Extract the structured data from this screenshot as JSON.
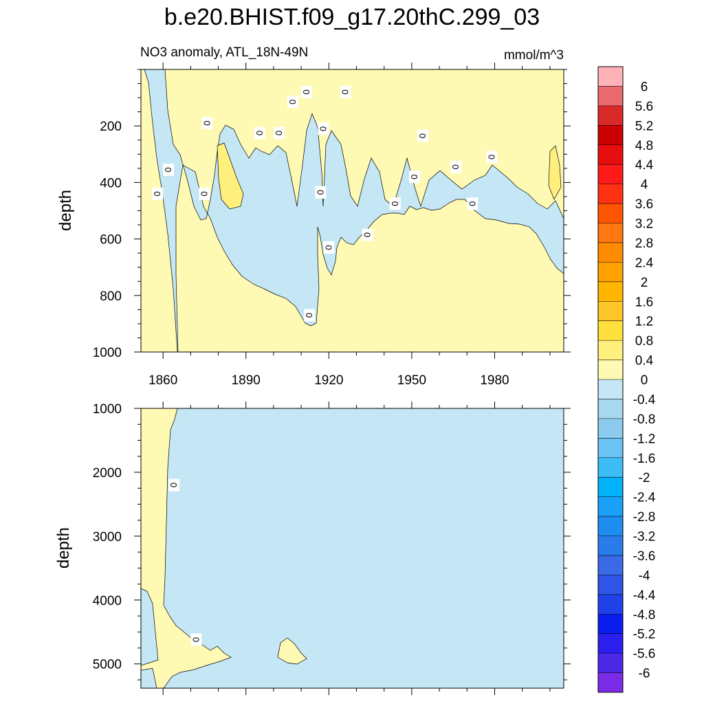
{
  "chart_data": {
    "type": "heatmap",
    "title": "b.e20.BHIST.f09_g17.20thC.299_03",
    "left_subtitle": "NO3 anomaly, ATL_18N-49N",
    "right_subtitle": "mmol/m^3",
    "x_ticks": [
      1860,
      1890,
      1920,
      1950,
      1980
    ],
    "xlim": [
      1852,
      2005
    ],
    "contour_label": "0",
    "panels": [
      {
        "name": "upper",
        "ylabel": "depth",
        "ylim": [
          0,
          1000
        ],
        "y_ticks": [
          200,
          400,
          600,
          800,
          1000
        ],
        "zero_labels": [
          {
            "x": 1858,
            "y": 440
          },
          {
            "x": 1862,
            "y": 355
          },
          {
            "x": 1876,
            "y": 190
          },
          {
            "x": 1875,
            "y": 440
          },
          {
            "x": 1895,
            "y": 225
          },
          {
            "x": 1902,
            "y": 225
          },
          {
            "x": 1907,
            "y": 115
          },
          {
            "x": 1912,
            "y": 80
          },
          {
            "x": 1913,
            "y": 870
          },
          {
            "x": 1917,
            "y": 435
          },
          {
            "x": 1918,
            "y": 210
          },
          {
            "x": 1920,
            "y": 630
          },
          {
            "x": 1926,
            "y": 80
          },
          {
            "x": 1934,
            "y": 585
          },
          {
            "x": 1944,
            "y": 475
          },
          {
            "x": 1951,
            "y": 380
          },
          {
            "x": 1954,
            "y": 235
          },
          {
            "x": 1966,
            "y": 345
          },
          {
            "x": 1972,
            "y": 475
          },
          {
            "x": 1979,
            "y": 310
          }
        ]
      },
      {
        "name": "lower",
        "ylabel": "depth",
        "ylim": [
          1000,
          5380
        ],
        "y_ticks": [
          1000,
          2000,
          3000,
          4000,
          5000
        ],
        "zero_labels": [
          {
            "x": 1864,
            "y": 2200
          },
          {
            "x": 1872,
            "y": 4620
          }
        ]
      }
    ],
    "colorbar": {
      "labels": [
        "6",
        "5.6",
        "5.2",
        "4.8",
        "4.4",
        "4",
        "3.6",
        "3.2",
        "2.8",
        "2.4",
        "2",
        "1.6",
        "1.2",
        "0.8",
        "0.4",
        "0",
        "-0.4",
        "-0.8",
        "-1.2",
        "-1.6",
        "-2",
        "-2.4",
        "-2.8",
        "-3.2",
        "-3.6",
        "-4",
        "-4.4",
        "-4.8",
        "-5.2",
        "-5.6",
        "-6"
      ],
      "colors": [
        "#FFB3B8",
        "#EB6A6E",
        "#D92A2A",
        "#CC0000",
        "#E60E0E",
        "#FF1A1A",
        "#FF3314",
        "#FF5500",
        "#FF7711",
        "#FF8C00",
        "#FFA200",
        "#FFB400",
        "#FFC62A",
        "#FFE03D",
        "#FFF07D",
        "#FFFAB3",
        "#C4E6F5",
        "#A6D9F0",
        "#8CCBEE",
        "#6BC4F5",
        "#3CBDF5",
        "#00B2F8",
        "#1AA0F6",
        "#1F8CF0",
        "#2A7CEB",
        "#3A6AE6",
        "#2F55E6",
        "#2040E8",
        "#0A1EF0",
        "#2D1EF0",
        "#4B28E6",
        "#7B2BE8"
      ]
    },
    "fill_colors": {
      "positive": "#FFFAB3",
      "negative": "#C4E6F5"
    }
  }
}
